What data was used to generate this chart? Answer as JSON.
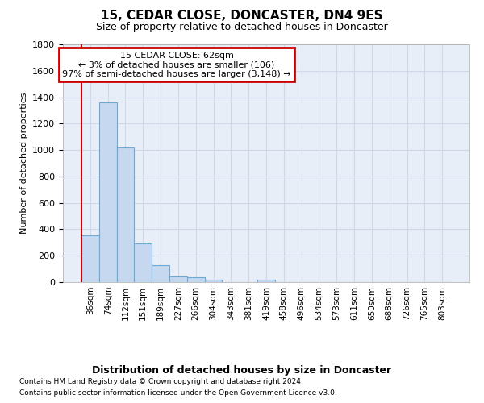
{
  "title": "15, CEDAR CLOSE, DONCASTER, DN4 9ES",
  "subtitle": "Size of property relative to detached houses in Doncaster",
  "xlabel": "Distribution of detached houses by size in Doncaster",
  "ylabel": "Number of detached properties",
  "footnote1": "Contains HM Land Registry data © Crown copyright and database right 2024.",
  "footnote2": "Contains public sector information licensed under the Open Government Licence v3.0.",
  "bar_labels": [
    "36sqm",
    "74sqm",
    "112sqm",
    "151sqm",
    "189sqm",
    "227sqm",
    "266sqm",
    "304sqm",
    "343sqm",
    "381sqm",
    "419sqm",
    "458sqm",
    "496sqm",
    "534sqm",
    "573sqm",
    "611sqm",
    "650sqm",
    "688sqm",
    "726sqm",
    "765sqm",
    "803sqm"
  ],
  "bar_values": [
    355,
    1360,
    1020,
    290,
    130,
    45,
    35,
    20,
    0,
    0,
    20,
    0,
    0,
    0,
    0,
    0,
    0,
    0,
    0,
    0,
    0
  ],
  "bar_color": "#c5d8f0",
  "bar_edge_color": "#6aaad4",
  "ylim": [
    0,
    1800
  ],
  "yticks": [
    0,
    200,
    400,
    600,
    800,
    1000,
    1200,
    1400,
    1600,
    1800
  ],
  "property_line_x": -0.5,
  "annotation_title": "15 CEDAR CLOSE: 62sqm",
  "annotation_line1": "← 3% of detached houses are smaller (106)",
  "annotation_line2": "97% of semi-detached houses are larger (3,148) →",
  "annotation_box_color": "#ffffff",
  "annotation_border_color": "#cc0000",
  "property_line_color": "#cc0000",
  "grid_color": "#d0d8e8",
  "bg_color": "#e8eef8"
}
